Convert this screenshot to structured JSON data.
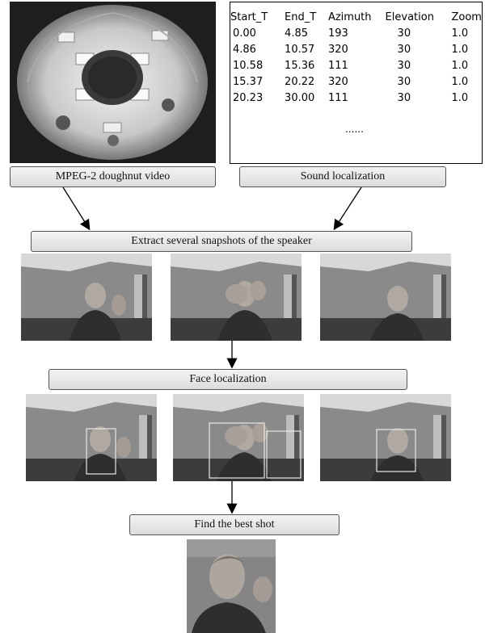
{
  "video": {
    "label": "MPEG-2 doughnut video"
  },
  "sound": {
    "label": "Sound localization",
    "columns": [
      "Start_T",
      "End_T",
      "Azimuth",
      "Elevation",
      "Zoom"
    ],
    "rows": [
      [
        "0.00",
        "4.85",
        "193",
        "30",
        "1.0"
      ],
      [
        "4.86",
        "10.57",
        "320",
        "30",
        "1.0"
      ],
      [
        "10.58",
        "15.36",
        "111",
        "30",
        "1.0"
      ],
      [
        "15.37",
        "20.22",
        "320",
        "30",
        "1.0"
      ],
      [
        "20.23",
        "30.00",
        "111",
        "30",
        "1.0"
      ]
    ],
    "more": "......"
  },
  "steps": {
    "extract": "Extract several snapshots of the speaker",
    "face": "Face localization",
    "best": "Find the best shot"
  },
  "colors": {
    "box_border": "#555555",
    "face_box": "#e8e8e8",
    "arrow": "#000000"
  }
}
